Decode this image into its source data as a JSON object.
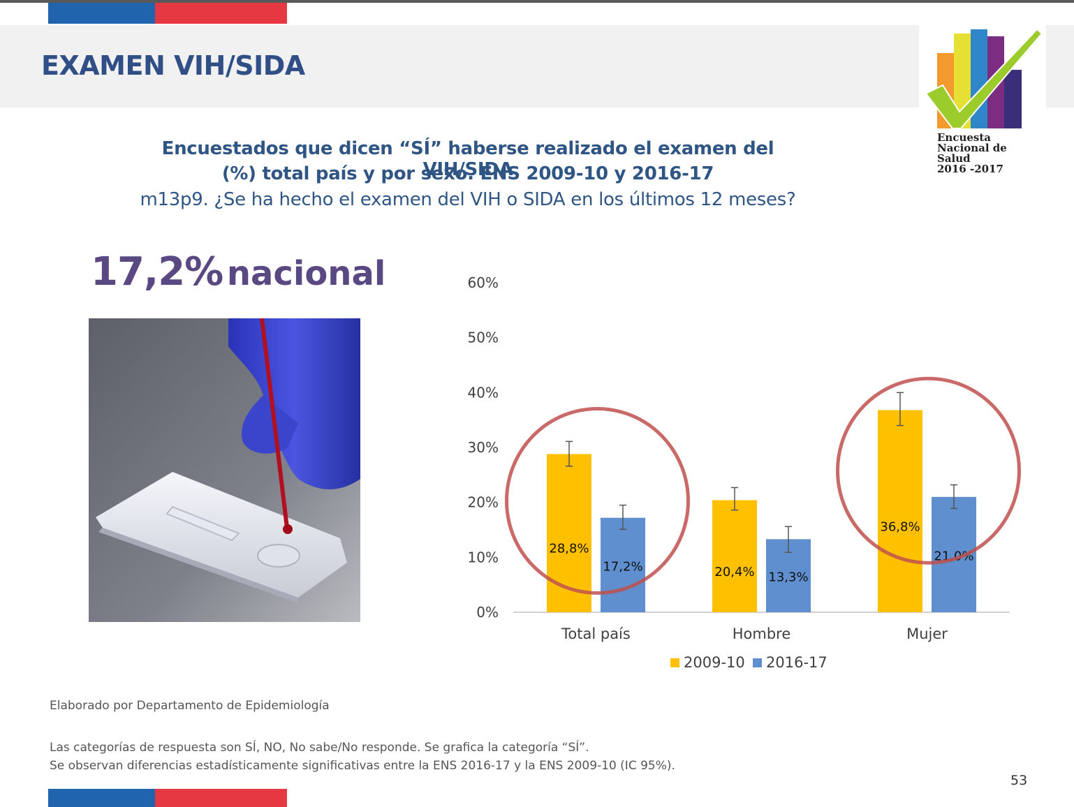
{
  "header": {
    "title": "EXAMEN VIH/SIDA"
  },
  "subtitle": {
    "line1": "Encuestados que dicen “SÍ” haberse realizado el examen del VIH/SIDA",
    "line2": "(%) total país y por sexo. ENS 2009-10 y 2016-17",
    "line3": "m13p9. ¿Se ha hecho el examen del VIH o SIDA en los últimos 12 meses?"
  },
  "logo": {
    "line1": "Encuesta",
    "line2": "Nacional de",
    "line3": "Salud",
    "line4": "2016 -2017"
  },
  "kpi": {
    "value": "17,2%",
    "label": "nacional"
  },
  "colors": {
    "series_2009": "#ffc000",
    "series_2016": "#5f8fce",
    "highlight_circle": "#c0504d",
    "title": "#2f4f86",
    "kpi": "#5a4882",
    "stripe_blue": "#1f64ad",
    "stripe_red": "#e53842"
  },
  "chart_data": {
    "type": "bar",
    "categories": [
      "Total país",
      "Hombre",
      "Mujer"
    ],
    "series": [
      {
        "name": "2009-10",
        "values": [
          28.8,
          20.4,
          36.8
        ],
        "labels": [
          "28,8%",
          "20,4%",
          "36,8%"
        ],
        "ci_low": [
          26.6,
          18.6,
          34.0
        ],
        "ci_high": [
          31.1,
          22.7,
          40.0
        ]
      },
      {
        "name": "2016-17",
        "values": [
          17.2,
          13.3,
          21.0
        ],
        "labels": [
          "17,2%",
          "13,3%",
          "21,0%"
        ],
        "ci_low": [
          15.1,
          10.9,
          18.9
        ],
        "ci_high": [
          19.5,
          15.6,
          23.2
        ]
      }
    ],
    "yticks": [
      0,
      10,
      20,
      30,
      40,
      50,
      60
    ],
    "ytick_labels": [
      "0%",
      "10%",
      "20%",
      "30%",
      "40%",
      "50%",
      "60%"
    ],
    "ylim": [
      0,
      60
    ],
    "grid": false,
    "legend_position": "bottom",
    "highlighted_categories": [
      "Total país",
      "Mujer"
    ]
  },
  "footer": {
    "source": "Elaborado por Departamento de Epidemiología",
    "note_line1": "Las categorías de respuesta son SÍ, NO, No sabe/No responde. Se grafica la categoría “SÍ”.",
    "note_line2": "Se observan diferencias estadísticamente significativas entre la ENS 2016-17 y la ENS 2009-10 (IC 95%).",
    "page_number": "53"
  }
}
